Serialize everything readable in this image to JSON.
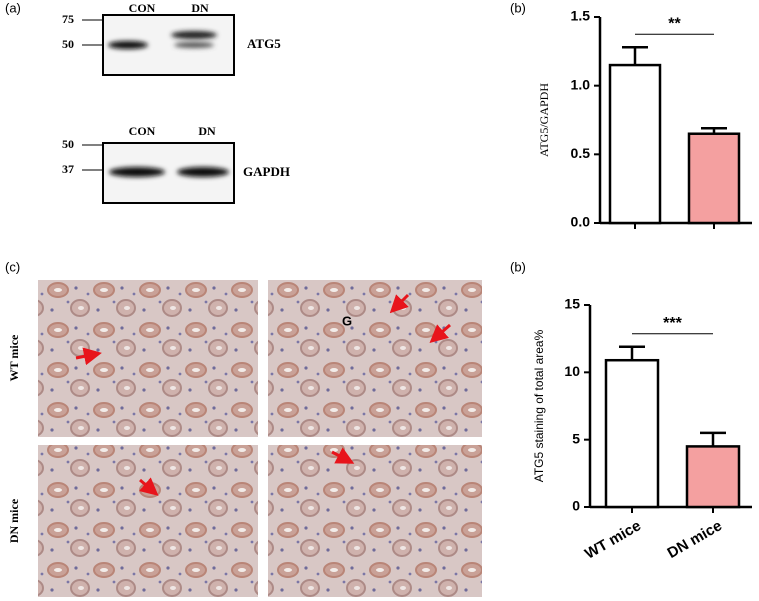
{
  "panel_labels": {
    "a": "(a)",
    "b1": "(b)",
    "c": "(c)",
    "b2": "(b)"
  },
  "blots": [
    {
      "markers": [
        "75",
        "50"
      ],
      "lanes": [
        "CON",
        "DN"
      ],
      "protein": "ATG5"
    },
    {
      "markers": [
        "50",
        "37"
      ],
      "lanes": [
        "CON",
        "DN"
      ],
      "protein": "GAPDH"
    }
  ],
  "histology": {
    "rows": [
      "WT mice",
      "DN mice"
    ],
    "annotation": "G"
  },
  "chart_data": [
    {
      "type": "bar",
      "ylabel": "ATG5/GAPDH",
      "categories": [
        null,
        null
      ],
      "values": [
        1.15,
        0.65
      ],
      "errors": [
        0.13,
        0.04
      ],
      "colors": [
        "#ffffff",
        "#f4a0a0"
      ],
      "ylim": [
        0,
        1.5
      ],
      "yticks": [
        {
          "value": 0,
          "label": "0.0"
        },
        {
          "value": 0.5,
          "label": "0.5"
        },
        {
          "value": 1,
          "label": "1.0"
        },
        {
          "value": 1.5,
          "label": "1.5"
        }
      ],
      "annotation": "**"
    },
    {
      "type": "bar",
      "ylabel": "ATG5 staining of  total area%",
      "categories": [
        "WT mice",
        "DN mice"
      ],
      "values": [
        10.9,
        4.5
      ],
      "errors": [
        1.0,
        1.0
      ],
      "colors": [
        "#ffffff",
        "#f4a0a0"
      ],
      "ylim": [
        0,
        15
      ],
      "yticks": [
        0,
        5,
        10,
        15
      ],
      "annotation": "***"
    }
  ]
}
